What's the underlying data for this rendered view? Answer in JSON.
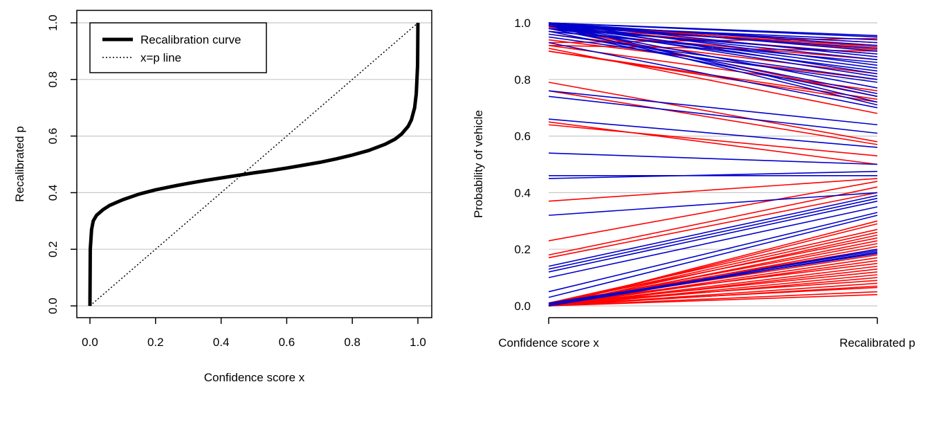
{
  "chart_data": [
    {
      "type": "line",
      "title": "",
      "xlabel": "Confidence score x",
      "ylabel": "Recalibrated p",
      "xlim": [
        0,
        1
      ],
      "ylim": [
        0,
        1
      ],
      "xticks": [
        "0.0",
        "0.2",
        "0.4",
        "0.6",
        "0.8",
        "1.0"
      ],
      "yticks": [
        "0.0",
        "0.2",
        "0.4",
        "0.6",
        "0.8",
        "1.0"
      ],
      "horizontal_grid": true,
      "legend_position": "top-left",
      "legend": [
        "Recalibration curve",
        "x=p line"
      ],
      "series": [
        {
          "name": "Recalibration curve",
          "style": "solid-thick",
          "color": "#000000",
          "x": [
            0.0,
            0.001,
            0.005,
            0.01,
            0.02,
            0.04,
            0.06,
            0.08,
            0.1,
            0.15,
            0.2,
            0.25,
            0.3,
            0.35,
            0.4,
            0.45,
            0.5,
            0.55,
            0.6,
            0.65,
            0.7,
            0.75,
            0.8,
            0.85,
            0.9,
            0.93,
            0.95,
            0.97,
            0.98,
            0.99,
            0.995,
            0.999,
            1.0
          ],
          "y": [
            0.0,
            0.2,
            0.27,
            0.3,
            0.32,
            0.34,
            0.355,
            0.365,
            0.375,
            0.395,
            0.41,
            0.422,
            0.433,
            0.443,
            0.452,
            0.461,
            0.47,
            0.478,
            0.487,
            0.497,
            0.507,
            0.519,
            0.533,
            0.549,
            0.571,
            0.589,
            0.607,
            0.634,
            0.657,
            0.7,
            0.75,
            0.85,
            1.0
          ]
        },
        {
          "name": "x=p line",
          "style": "dotted",
          "color": "#000000",
          "x": [
            0,
            1
          ],
          "y": [
            0,
            1
          ]
        }
      ]
    },
    {
      "type": "line",
      "title": "",
      "xlabel": "",
      "ylabel": "Probability of vehicle",
      "categories": [
        "Confidence score x",
        "Recalibrated p"
      ],
      "ylim": [
        0,
        1
      ],
      "yticks": [
        "0.0",
        "0.2",
        "0.4",
        "0.6",
        "0.8",
        "1.0"
      ],
      "horizontal_grid": true,
      "series": [
        {
          "name": "red",
          "color": "#ff0000",
          "segments": [
            [
              0.93,
              0.945
            ],
            [
              0.92,
              0.9
            ],
            [
              0.99,
              0.93
            ],
            [
              0.98,
              0.92
            ],
            [
              0.995,
              0.915
            ],
            [
              0.995,
              0.905
            ],
            [
              0.985,
              0.89
            ],
            [
              0.97,
              0.87
            ],
            [
              0.96,
              0.82
            ],
            [
              0.94,
              0.8
            ],
            [
              0.92,
              0.76
            ],
            [
              0.9,
              0.73
            ],
            [
              0.9,
              0.72
            ],
            [
              0.91,
              0.68
            ],
            [
              0.99,
              0.74
            ],
            [
              0.79,
              0.58
            ],
            [
              0.76,
              0.57
            ],
            [
              0.64,
              0.53
            ],
            [
              0.65,
              0.5
            ],
            [
              0.37,
              0.45
            ],
            [
              0.23,
              0.44
            ],
            [
              0.18,
              0.42
            ],
            [
              0.17,
              0.4
            ],
            [
              0.0,
              0.3
            ],
            [
              0.0,
              0.29
            ],
            [
              0.01,
              0.27
            ],
            [
              0.005,
              0.26
            ],
            [
              0.0,
              0.25
            ],
            [
              0.01,
              0.24
            ],
            [
              0.0,
              0.23
            ],
            [
              0.005,
              0.22
            ],
            [
              0.0,
              0.21
            ],
            [
              0.01,
              0.2
            ],
            [
              0.0,
              0.19
            ],
            [
              0.005,
              0.18
            ],
            [
              0.0,
              0.17
            ],
            [
              0.0,
              0.16
            ],
            [
              0.01,
              0.15
            ],
            [
              0.0,
              0.14
            ],
            [
              0.0,
              0.13
            ],
            [
              0.005,
              0.12
            ],
            [
              0.0,
              0.11
            ],
            [
              0.0,
              0.1
            ],
            [
              0.01,
              0.09
            ],
            [
              0.0,
              0.08
            ],
            [
              0.0,
              0.07
            ],
            [
              0.005,
              0.065
            ],
            [
              0.0,
              0.05
            ],
            [
              0.0,
              0.04
            ]
          ]
        },
        {
          "name": "blue",
          "color": "#0000cc",
          "segments": [
            [
              1.0,
              0.955
            ],
            [
              1.0,
              0.95
            ],
            [
              0.99,
              0.94
            ],
            [
              0.995,
              0.93
            ],
            [
              1.0,
              0.92
            ],
            [
              0.99,
              0.91
            ],
            [
              1.0,
              0.9
            ],
            [
              0.98,
              0.89
            ],
            [
              1.0,
              0.88
            ],
            [
              0.99,
              0.87
            ],
            [
              0.97,
              0.86
            ],
            [
              1.0,
              0.85
            ],
            [
              0.99,
              0.84
            ],
            [
              0.98,
              0.83
            ],
            [
              1.0,
              0.82
            ],
            [
              0.99,
              0.81
            ],
            [
              0.96,
              0.8
            ],
            [
              0.95,
              0.79
            ],
            [
              0.99,
              0.77
            ],
            [
              0.98,
              0.75
            ],
            [
              0.97,
              0.74
            ],
            [
              1.0,
              0.72
            ],
            [
              0.99,
              0.71
            ],
            [
              0.93,
              0.7
            ],
            [
              0.76,
              0.64
            ],
            [
              0.74,
              0.61
            ],
            [
              0.66,
              0.56
            ],
            [
              0.54,
              0.5
            ],
            [
              0.46,
              0.46
            ],
            [
              0.45,
              0.475
            ],
            [
              0.32,
              0.4
            ],
            [
              0.14,
              0.39
            ],
            [
              0.13,
              0.38
            ],
            [
              0.12,
              0.37
            ],
            [
              0.1,
              0.35
            ],
            [
              0.05,
              0.33
            ],
            [
              0.03,
              0.32
            ],
            [
              0.0,
              0.2
            ],
            [
              0.005,
              0.195
            ],
            [
              0.0,
              0.19
            ],
            [
              0.01,
              0.185
            ]
          ]
        }
      ]
    }
  ]
}
